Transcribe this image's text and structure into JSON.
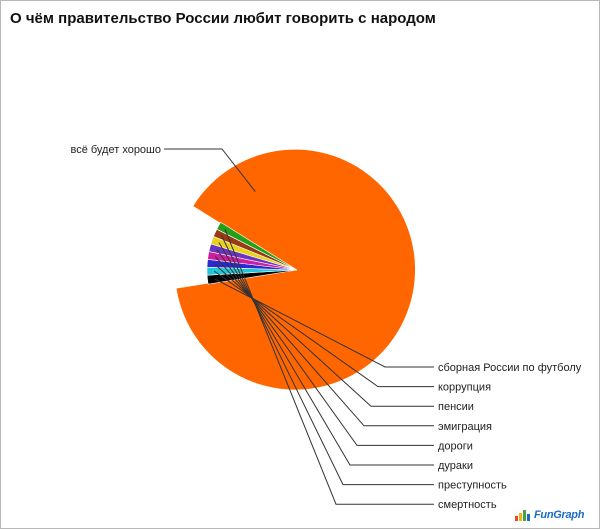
{
  "title": "О чём правительство России любит говорить с народом",
  "logo_text": "FunGraph",
  "logo_colors": [
    "#e94b1c",
    "#f2b21d",
    "#49a43a",
    "#1b6cc4"
  ],
  "chart_data": {
    "type": "pie",
    "title": "О чём правительство России любит говорить с народом",
    "start_angle_deg": 148,
    "slices": [
      {
        "label": "всё будет хорошо",
        "value": 88.6,
        "color": "#ff6600"
      },
      {
        "label": "сборная России по футболу",
        "value": 1.6,
        "color": "#000000"
      },
      {
        "label": "коррупция",
        "value": 1.4,
        "color": "#1fc8d6"
      },
      {
        "label": "пенсии",
        "value": 1.4,
        "color": "#2a2ad0"
      },
      {
        "label": "эмиграция",
        "value": 1.4,
        "color": "#cc1e9e"
      },
      {
        "label": "дороги",
        "value": 1.4,
        "color": "#6a36c0"
      },
      {
        "label": "дураки",
        "value": 1.4,
        "color": "#e8d21c"
      },
      {
        "label": "преступность",
        "value": 1.4,
        "color": "#9a3a12"
      },
      {
        "label": "смертность",
        "value": 1.4,
        "color": "#22a01a"
      }
    ]
  }
}
